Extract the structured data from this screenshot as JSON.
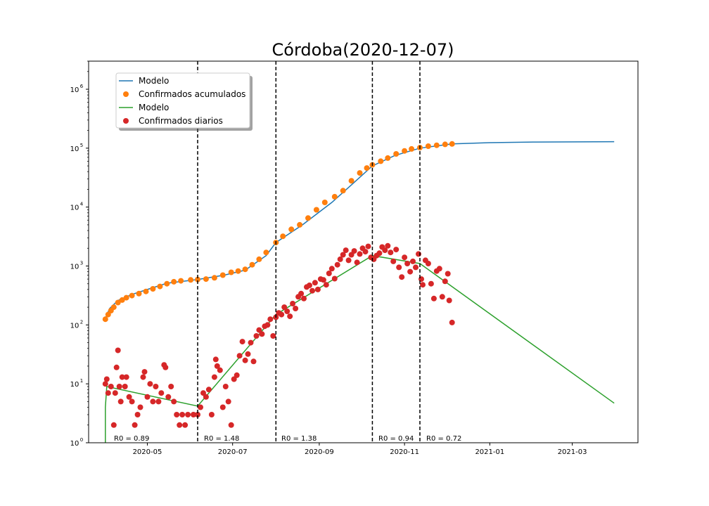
{
  "chart_data": {
    "type": "scatter",
    "title": "Córdoba(2020-12-07)",
    "xlabel": "",
    "ylabel": "",
    "yscale": "log",
    "ylim": [
      1,
      3000000
    ],
    "xlim": [
      "2020-03-20",
      "2021-04-17"
    ],
    "xticks": [
      "2020-05",
      "2020-07",
      "2020-09",
      "2020-11",
      "2021-01",
      "2021-03"
    ],
    "yticks": [
      {
        "value": 1,
        "base": "10",
        "exp": "0"
      },
      {
        "value": 10,
        "base": "10",
        "exp": "1"
      },
      {
        "value": 100,
        "base": "10",
        "exp": "2"
      },
      {
        "value": 1000,
        "base": "10",
        "exp": "3"
      },
      {
        "value": 10000,
        "base": "10",
        "exp": "4"
      },
      {
        "value": 100000,
        "base": "10",
        "exp": "5"
      },
      {
        "value": 1000000,
        "base": "10",
        "exp": "6"
      }
    ],
    "grid": false,
    "legend_position": "top-left",
    "legend": [
      {
        "label": "Modelo",
        "kind": "line",
        "color": "#1f77b4"
      },
      {
        "label": "Confirmados acumulados",
        "kind": "marker",
        "color": "#ff7f0e"
      },
      {
        "label": "Modelo",
        "kind": "line",
        "color": "#2ca02c"
      },
      {
        "label": "Confirmados diarios",
        "kind": "marker",
        "color": "#d62728"
      }
    ],
    "vlines": [
      {
        "date": "2020-06-06",
        "label": "R0 = 0.89"
      },
      {
        "date": "2020-08-01",
        "label": "R0 = 1.48"
      },
      {
        "date": "2020-10-09",
        "label": "R0 = 1.38"
      },
      {
        "date": "2020-11-12",
        "label": "R0 = 0.94"
      }
    ],
    "extra_label": {
      "date": "2020-11-12",
      "label": "R0 = 0.72"
    },
    "series": [
      {
        "name": "Modelo",
        "kind": "line",
        "color": "#1f77b4",
        "points": [
          [
            "2020-04-01",
            130
          ],
          [
            "2020-04-04",
            190
          ],
          [
            "2020-04-10",
            260
          ],
          [
            "2020-04-20",
            330
          ],
          [
            "2020-05-01",
            400
          ],
          [
            "2020-05-15",
            510
          ],
          [
            "2020-06-06",
            590
          ],
          [
            "2020-06-25",
            700
          ],
          [
            "2020-07-10",
            850
          ],
          [
            "2020-07-25",
            1500
          ],
          [
            "2020-08-01",
            2500
          ],
          [
            "2020-08-20",
            5000
          ],
          [
            "2020-09-10",
            12000
          ],
          [
            "2020-09-25",
            25000
          ],
          [
            "2020-10-09",
            50000
          ],
          [
            "2020-10-25",
            75000
          ],
          [
            "2020-11-12",
            100000
          ],
          [
            "2020-12-05",
            118000
          ],
          [
            "2021-01-01",
            124000
          ],
          [
            "2021-02-01",
            127000
          ],
          [
            "2021-03-31",
            129000
          ]
        ]
      },
      {
        "name": "Confirmados acumulados",
        "kind": "scatter",
        "color": "#ff7f0e",
        "points": [
          [
            "2020-04-01",
            125
          ],
          [
            "2020-04-03",
            150
          ],
          [
            "2020-04-05",
            175
          ],
          [
            "2020-04-07",
            200
          ],
          [
            "2020-04-10",
            240
          ],
          [
            "2020-04-13",
            265
          ],
          [
            "2020-04-16",
            290
          ],
          [
            "2020-04-20",
            315
          ],
          [
            "2020-04-25",
            340
          ],
          [
            "2020-04-30",
            370
          ],
          [
            "2020-05-05",
            410
          ],
          [
            "2020-05-10",
            450
          ],
          [
            "2020-05-15",
            500
          ],
          [
            "2020-05-20",
            540
          ],
          [
            "2020-05-25",
            560
          ],
          [
            "2020-06-01",
            580
          ],
          [
            "2020-06-06",
            590
          ],
          [
            "2020-06-12",
            600
          ],
          [
            "2020-06-18",
            630
          ],
          [
            "2020-06-24",
            700
          ],
          [
            "2020-06-30",
            780
          ],
          [
            "2020-07-05",
            820
          ],
          [
            "2020-07-10",
            880
          ],
          [
            "2020-07-15",
            1050
          ],
          [
            "2020-07-20",
            1300
          ],
          [
            "2020-07-25",
            1700
          ],
          [
            "2020-08-01",
            2500
          ],
          [
            "2020-08-06",
            3200
          ],
          [
            "2020-08-12",
            4200
          ],
          [
            "2020-08-18",
            5000
          ],
          [
            "2020-08-24",
            6500
          ],
          [
            "2020-08-30",
            9000
          ],
          [
            "2020-09-05",
            12000
          ],
          [
            "2020-09-12",
            15000
          ],
          [
            "2020-09-18",
            19000
          ],
          [
            "2020-09-24",
            28000
          ],
          [
            "2020-09-30",
            38000
          ],
          [
            "2020-10-05",
            46000
          ],
          [
            "2020-10-09",
            52000
          ],
          [
            "2020-10-15",
            60000
          ],
          [
            "2020-10-20",
            68000
          ],
          [
            "2020-10-26",
            80000
          ],
          [
            "2020-11-01",
            90000
          ],
          [
            "2020-11-06",
            97000
          ],
          [
            "2020-11-12",
            102000
          ],
          [
            "2020-11-18",
            108000
          ],
          [
            "2020-11-24",
            112000
          ],
          [
            "2020-11-30",
            116000
          ],
          [
            "2020-12-05",
            118000
          ]
        ]
      },
      {
        "name": "Modelo",
        "kind": "line",
        "color": "#2ca02c",
        "points": [
          [
            "2020-04-01",
            1
          ],
          [
            "2020-04-01",
            4
          ],
          [
            "2020-04-02",
            9
          ],
          [
            "2020-06-06",
            4.2
          ],
          [
            "2020-08-01",
            150
          ],
          [
            "2020-10-09",
            1500
          ],
          [
            "2020-11-12",
            1100
          ],
          [
            "2021-03-31",
            4.7
          ]
        ]
      },
      {
        "name": "Confirmados diarios",
        "kind": "scatter",
        "color": "#d62728",
        "points": [
          [
            "2020-04-01",
            10
          ],
          [
            "2020-04-02",
            12
          ],
          [
            "2020-04-03",
            7
          ],
          [
            "2020-04-05",
            9
          ],
          [
            "2020-04-07",
            2
          ],
          [
            "2020-04-08",
            7
          ],
          [
            "2020-04-09",
            19
          ],
          [
            "2020-04-10",
            37
          ],
          [
            "2020-04-11",
            9
          ],
          [
            "2020-04-12",
            5
          ],
          [
            "2020-04-13",
            13
          ],
          [
            "2020-04-15",
            9
          ],
          [
            "2020-04-16",
            13
          ],
          [
            "2020-04-18",
            6
          ],
          [
            "2020-04-20",
            5
          ],
          [
            "2020-04-22",
            2
          ],
          [
            "2020-04-24",
            3
          ],
          [
            "2020-04-26",
            4
          ],
          [
            "2020-04-28",
            13
          ],
          [
            "2020-04-29",
            16
          ],
          [
            "2020-05-01",
            6
          ],
          [
            "2020-05-03",
            10
          ],
          [
            "2020-05-05",
            5
          ],
          [
            "2020-05-07",
            9
          ],
          [
            "2020-05-09",
            5
          ],
          [
            "2020-05-11",
            7
          ],
          [
            "2020-05-13",
            21
          ],
          [
            "2020-05-14",
            19
          ],
          [
            "2020-05-16",
            6
          ],
          [
            "2020-05-18",
            9
          ],
          [
            "2020-05-20",
            5
          ],
          [
            "2020-05-22",
            3
          ],
          [
            "2020-05-24",
            2
          ],
          [
            "2020-05-26",
            3
          ],
          [
            "2020-05-28",
            2
          ],
          [
            "2020-05-30",
            3
          ],
          [
            "2020-06-03",
            3
          ],
          [
            "2020-06-06",
            3
          ],
          [
            "2020-06-08",
            4
          ],
          [
            "2020-06-10",
            7
          ],
          [
            "2020-06-12",
            6
          ],
          [
            "2020-06-14",
            8
          ],
          [
            "2020-06-16",
            3
          ],
          [
            "2020-06-18",
            13
          ],
          [
            "2020-06-19",
            26
          ],
          [
            "2020-06-20",
            20
          ],
          [
            "2020-06-22",
            17
          ],
          [
            "2020-06-24",
            4
          ],
          [
            "2020-06-26",
            9
          ],
          [
            "2020-06-28",
            5
          ],
          [
            "2020-06-30",
            2
          ],
          [
            "2020-07-02",
            12
          ],
          [
            "2020-07-04",
            14
          ],
          [
            "2020-07-06",
            30
          ],
          [
            "2020-07-08",
            52
          ],
          [
            "2020-07-10",
            25
          ],
          [
            "2020-07-12",
            32
          ],
          [
            "2020-07-14",
            50
          ],
          [
            "2020-07-16",
            24
          ],
          [
            "2020-07-18",
            65
          ],
          [
            "2020-07-20",
            82
          ],
          [
            "2020-07-22",
            70
          ],
          [
            "2020-07-24",
            95
          ],
          [
            "2020-07-26",
            100
          ],
          [
            "2020-07-28",
            125
          ],
          [
            "2020-07-30",
            65
          ],
          [
            "2020-08-01",
            135
          ],
          [
            "2020-08-03",
            160
          ],
          [
            "2020-08-05",
            150
          ],
          [
            "2020-08-07",
            200
          ],
          [
            "2020-08-09",
            170
          ],
          [
            "2020-08-11",
            140
          ],
          [
            "2020-08-13",
            230
          ],
          [
            "2020-08-15",
            190
          ],
          [
            "2020-08-17",
            300
          ],
          [
            "2020-08-19",
            340
          ],
          [
            "2020-08-21",
            280
          ],
          [
            "2020-08-23",
            440
          ],
          [
            "2020-08-25",
            470
          ],
          [
            "2020-08-27",
            380
          ],
          [
            "2020-08-29",
            520
          ],
          [
            "2020-08-31",
            400
          ],
          [
            "2020-09-02",
            600
          ],
          [
            "2020-09-04",
            580
          ],
          [
            "2020-09-06",
            480
          ],
          [
            "2020-09-08",
            750
          ],
          [
            "2020-09-10",
            900
          ],
          [
            "2020-09-12",
            610
          ],
          [
            "2020-09-14",
            1050
          ],
          [
            "2020-09-16",
            1300
          ],
          [
            "2020-09-18",
            1550
          ],
          [
            "2020-09-20",
            1850
          ],
          [
            "2020-09-22",
            1250
          ],
          [
            "2020-09-24",
            1550
          ],
          [
            "2020-09-26",
            1800
          ],
          [
            "2020-09-28",
            1150
          ],
          [
            "2020-09-30",
            1600
          ],
          [
            "2020-10-02",
            2000
          ],
          [
            "2020-10-04",
            1750
          ],
          [
            "2020-10-06",
            2150
          ],
          [
            "2020-10-08",
            1400
          ],
          [
            "2020-10-10",
            1300
          ],
          [
            "2020-10-12",
            1500
          ],
          [
            "2020-10-14",
            1650
          ],
          [
            "2020-10-16",
            2100
          ],
          [
            "2020-10-18",
            1850
          ],
          [
            "2020-10-20",
            2200
          ],
          [
            "2020-10-22",
            1700
          ],
          [
            "2020-10-24",
            1200
          ],
          [
            "2020-10-26",
            1900
          ],
          [
            "2020-10-28",
            950
          ],
          [
            "2020-10-30",
            650
          ],
          [
            "2020-11-01",
            1400
          ],
          [
            "2020-11-03",
            1100
          ],
          [
            "2020-11-05",
            800
          ],
          [
            "2020-11-07",
            1200
          ],
          [
            "2020-11-09",
            950
          ],
          [
            "2020-11-11",
            1600
          ],
          [
            "2020-11-13",
            600
          ],
          [
            "2020-11-14",
            480
          ],
          [
            "2020-11-16",
            1250
          ],
          [
            "2020-11-18",
            1100
          ],
          [
            "2020-11-20",
            500
          ],
          [
            "2020-11-22",
            280
          ],
          [
            "2020-11-24",
            820
          ],
          [
            "2020-11-26",
            900
          ],
          [
            "2020-11-28",
            300
          ],
          [
            "2020-11-30",
            550
          ],
          [
            "2020-12-02",
            740
          ],
          [
            "2020-12-03",
            260
          ],
          [
            "2020-12-05",
            110
          ]
        ]
      }
    ]
  }
}
